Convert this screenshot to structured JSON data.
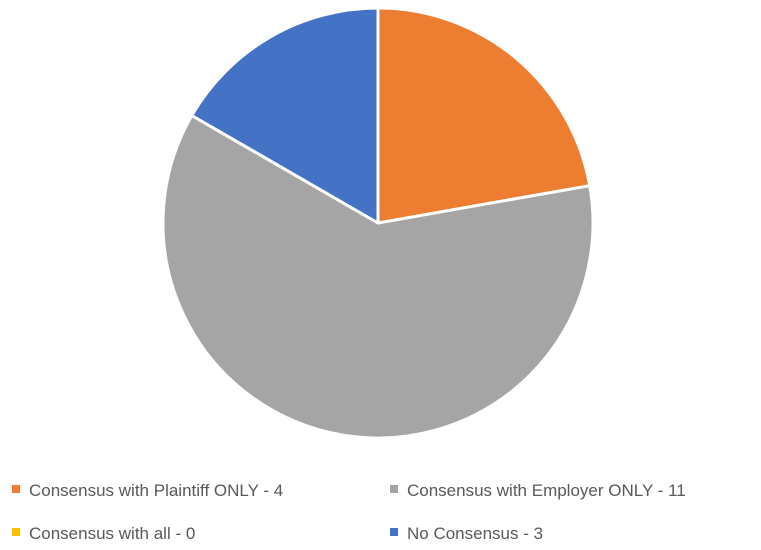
{
  "chart_data": {
    "type": "pie",
    "title": "",
    "start_angle_deg": 0,
    "direction": "clockwise",
    "slices": [
      {
        "label": "Consensus with Plaintiff ONLY - 4",
        "value": 4,
        "color": "#ED7D31"
      },
      {
        "label": "Consensus with Employer ONLY - 11",
        "value": 11,
        "color": "#A5A5A5"
      },
      {
        "label": "Consensus with all - 0",
        "value": 0,
        "color": "#FFC000"
      },
      {
        "label": "No Consensus - 3",
        "value": 3,
        "color": "#4472C4"
      }
    ],
    "legend": {
      "position": "bottom",
      "columns": 2
    },
    "slice_border_color": "#FFFFFF"
  }
}
